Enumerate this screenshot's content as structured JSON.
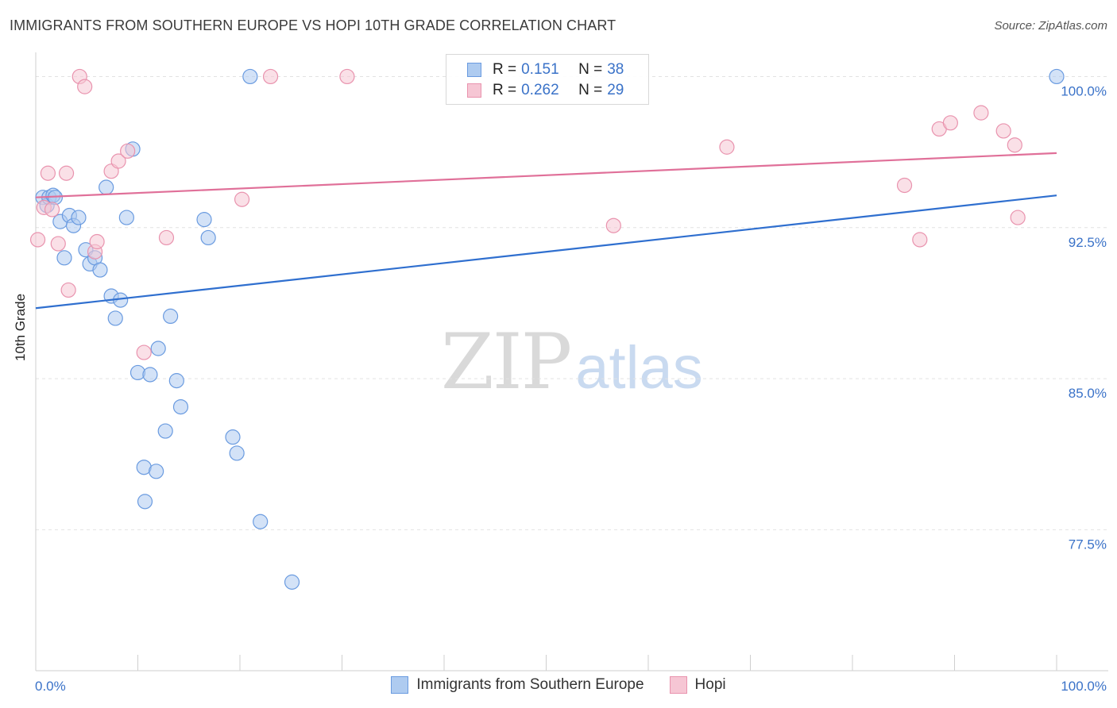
{
  "title": "IMMIGRANTS FROM SOUTHERN EUROPE VS HOPI 10TH GRADE CORRELATION CHART",
  "source": "Source: ZipAtlas.com",
  "watermark": {
    "zip": "ZIP",
    "atlas": "atlas"
  },
  "legend_top": [
    {
      "r_label": "R =",
      "r_value": "0.151",
      "n_label": "N =",
      "n_value": "38",
      "color": "#aecbf0",
      "border": "#6a9be0"
    },
    {
      "r_label": "R =",
      "r_value": "0.262",
      "n_label": "N =",
      "n_value": "29",
      "color": "#f6c6d4",
      "border": "#e993ae"
    }
  ],
  "legend_bottom": [
    {
      "label": "Immigrants from Southern Europe",
      "color": "#aecbf0",
      "border": "#6a9be0"
    },
    {
      "label": "Hopi",
      "color": "#f6c6d4",
      "border": "#e993ae"
    }
  ],
  "chart_data": {
    "type": "scatter",
    "xlabel": "",
    "ylabel": "10th Grade",
    "xlim": [
      0,
      100
    ],
    "ylim": [
      70.5,
      101.2
    ],
    "x_tick_labels": [
      "0.0%",
      "100.0%"
    ],
    "y_ticks": [
      77.5,
      85.0,
      92.5,
      100.0
    ],
    "y_tick_labels": [
      "77.5%",
      "85.0%",
      "92.5%",
      "100.0%"
    ],
    "grid": true,
    "series": [
      {
        "name": "Immigrants from Southern Europe",
        "color": "#6a9be0",
        "fill": "#aecbf0",
        "trend_color": "#2f6fcf",
        "trend": [
          [
            0,
            88.5
          ],
          [
            100,
            94.1
          ]
        ],
        "points": [
          [
            0.7,
            94.0
          ],
          [
            1.1,
            93.6
          ],
          [
            1.3,
            94.0
          ],
          [
            1.7,
            94.1
          ],
          [
            1.9,
            94.0
          ],
          [
            2.4,
            92.8
          ],
          [
            2.8,
            91.0
          ],
          [
            3.3,
            93.1
          ],
          [
            3.7,
            92.6
          ],
          [
            4.2,
            93.0
          ],
          [
            4.9,
            91.4
          ],
          [
            5.3,
            90.7
          ],
          [
            5.8,
            91.0
          ],
          [
            6.3,
            90.4
          ],
          [
            6.9,
            94.5
          ],
          [
            7.4,
            89.1
          ],
          [
            7.8,
            88.0
          ],
          [
            8.3,
            88.9
          ],
          [
            8.9,
            93.0
          ],
          [
            9.5,
            96.4
          ],
          [
            10.0,
            85.3
          ],
          [
            10.6,
            80.6
          ],
          [
            10.7,
            78.9
          ],
          [
            11.2,
            85.2
          ],
          [
            11.8,
            80.4
          ],
          [
            12.0,
            86.5
          ],
          [
            12.7,
            82.4
          ],
          [
            13.2,
            88.1
          ],
          [
            13.8,
            84.9
          ],
          [
            14.2,
            83.6
          ],
          [
            16.5,
            92.9
          ],
          [
            16.9,
            92.0
          ],
          [
            19.3,
            82.1
          ],
          [
            19.7,
            81.3
          ],
          [
            21.0,
            100.0
          ],
          [
            22.0,
            77.9
          ],
          [
            25.1,
            74.9
          ],
          [
            100.0,
            100.0
          ]
        ]
      },
      {
        "name": "Hopi",
        "color": "#e993ae",
        "fill": "#f6c6d4",
        "trend_color": "#e07099",
        "trend": [
          [
            0,
            94.0
          ],
          [
            100,
            96.2
          ]
        ],
        "points": [
          [
            0.2,
            91.9
          ],
          [
            0.8,
            93.5
          ],
          [
            1.2,
            95.2
          ],
          [
            1.6,
            93.4
          ],
          [
            2.2,
            91.7
          ],
          [
            3.0,
            95.2
          ],
          [
            3.2,
            89.4
          ],
          [
            4.3,
            100.0
          ],
          [
            4.8,
            99.5
          ],
          [
            5.8,
            91.3
          ],
          [
            6.0,
            91.8
          ],
          [
            7.4,
            95.3
          ],
          [
            8.1,
            95.8
          ],
          [
            9.0,
            96.3
          ],
          [
            10.6,
            86.3
          ],
          [
            12.8,
            92.0
          ],
          [
            20.2,
            93.9
          ],
          [
            23.0,
            100.0
          ],
          [
            30.5,
            100.0
          ],
          [
            56.6,
            92.6
          ],
          [
            67.7,
            96.5
          ],
          [
            85.1,
            94.6
          ],
          [
            86.6,
            91.9
          ],
          [
            88.5,
            97.4
          ],
          [
            89.6,
            97.7
          ],
          [
            92.6,
            98.2
          ],
          [
            94.8,
            97.3
          ],
          [
            95.9,
            96.6
          ],
          [
            96.2,
            93.0
          ]
        ]
      }
    ]
  }
}
